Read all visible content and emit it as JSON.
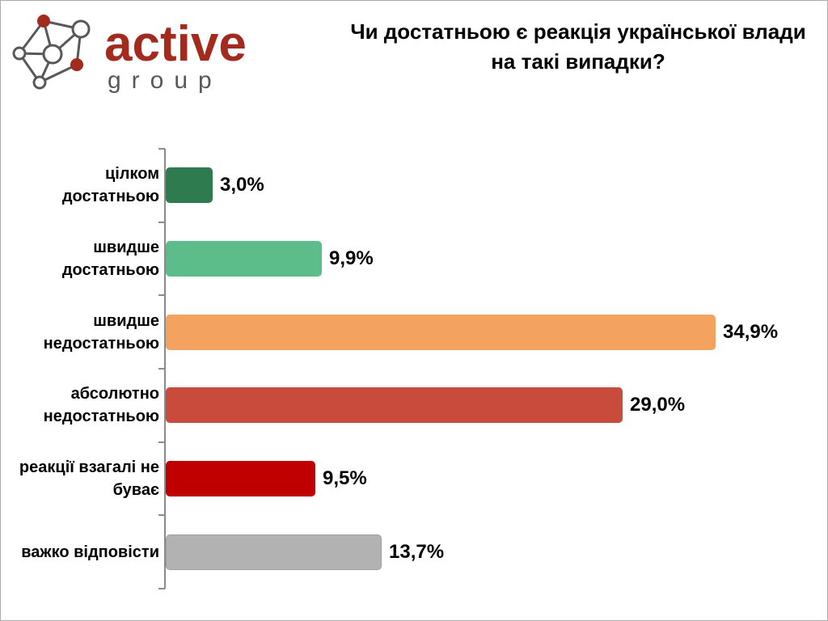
{
  "brand": {
    "name_primary": "active",
    "name_secondary": "group",
    "logo_red": "#a32b1e",
    "logo_gray": "#57585a"
  },
  "title": {
    "line1": "Чи достатньою є реакція української влади",
    "line2": "на такі випадки?"
  },
  "chart_data": {
    "type": "bar",
    "orientation": "horizontal",
    "title": "Чи достатньою є реакція української влади на такі випадки?",
    "unit": "%",
    "xlim": [
      0,
      36
    ],
    "gridlines": false,
    "value_labels": "outside-end",
    "decimal_separator": ",",
    "axis_color": "#8a8a8a",
    "categories": [
      "цілком достатньою",
      "швидше достатньою",
      "швидше недостатньою",
      "абсолютно недостатньою",
      "реакції взагалі не буває",
      "важко відповісти"
    ],
    "values": [
      3.0,
      9.9,
      34.9,
      29.0,
      9.5,
      13.7
    ],
    "rows": [
      {
        "category_lines": [
          "цілком достатньою"
        ],
        "value": 3.0,
        "label": "3,0%",
        "color": "#2f7b50",
        "border": "#2f7b50"
      },
      {
        "category_lines": [
          "швидше достатньою"
        ],
        "value": 9.9,
        "label": "9,9%",
        "color": "#5cbd8a",
        "border": "#5cbd8a"
      },
      {
        "category_lines": [
          "швидше",
          "недостатньою"
        ],
        "value": 34.9,
        "label": "34,9%",
        "color": "#f3a35f",
        "border": "#f3a35f"
      },
      {
        "category_lines": [
          "абсолютно",
          "недостатньою"
        ],
        "value": 29.0,
        "label": "29,0%",
        "color": "#c94b3c",
        "border": "#c94b3c"
      },
      {
        "category_lines": [
          "реакції взагалі не",
          "буває"
        ],
        "value": 9.5,
        "label": "9,5%",
        "color": "#c00000",
        "border": "#c00000"
      },
      {
        "category_lines": [
          "важко відповісти"
        ],
        "value": 13.7,
        "label": "13,7%",
        "color": "#b2b2b2",
        "border": "#a0a0a0"
      }
    ]
  }
}
